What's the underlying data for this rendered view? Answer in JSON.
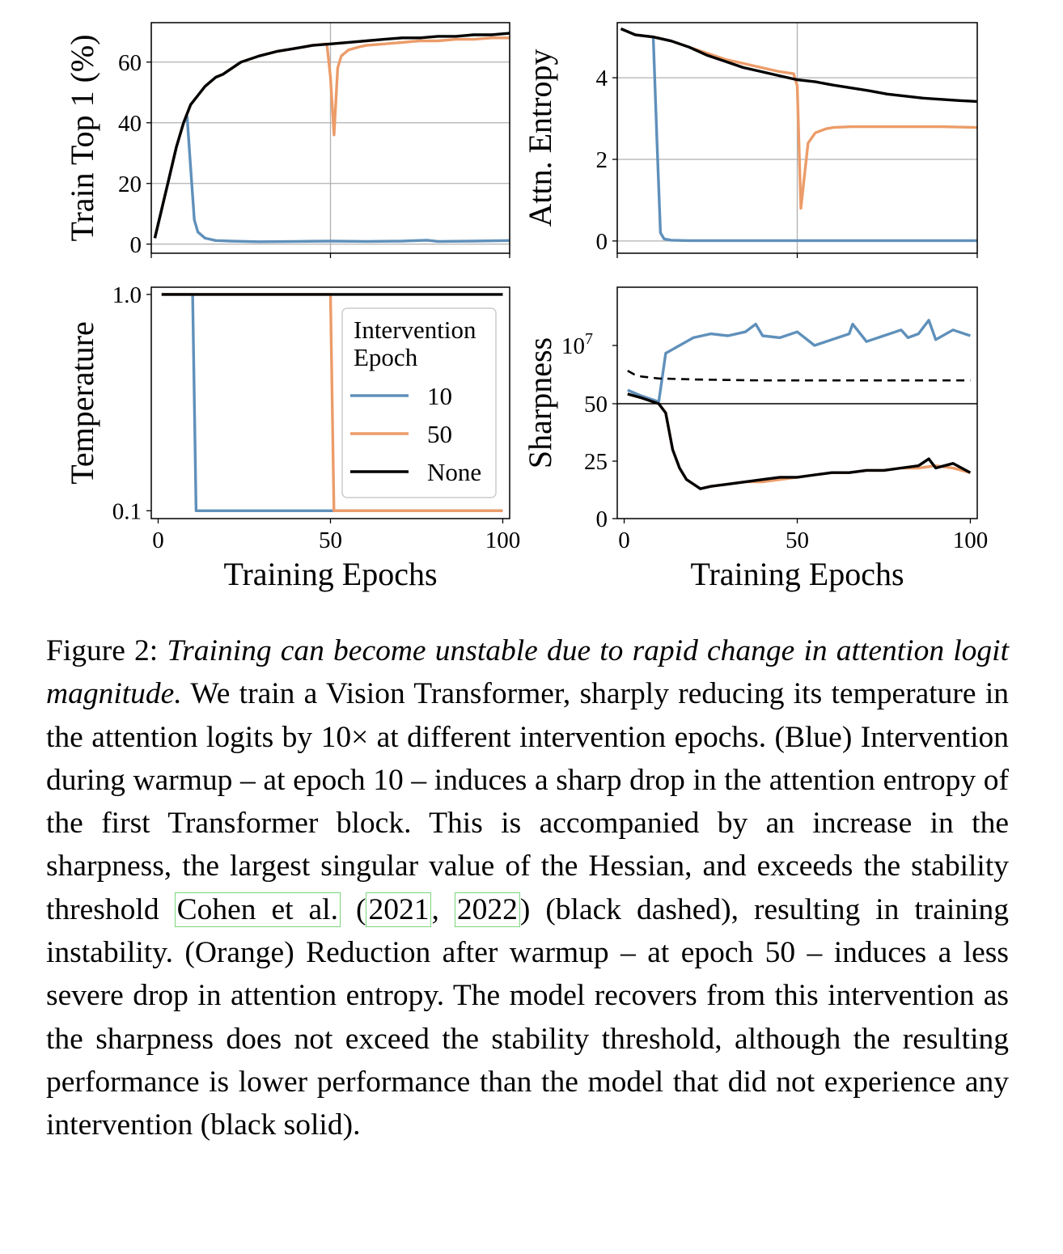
{
  "colors": {
    "blue": "#5f90bb",
    "orange": "#ec9c69",
    "black": "#000000",
    "grid": "#b0b0b0"
  },
  "legend": {
    "title_line1": "Intervention",
    "title_line2": "Epoch",
    "labels": [
      "10",
      "50",
      "None"
    ]
  },
  "caption": {
    "label": "Figure 2:",
    "italic": "Training can become unstable due to rapid change in attention logit magnitude.",
    "text1": "We train a Vision Transformer, sharply reducing its temperature in the attention logits by 10× at different intervention epochs. (Blue) Intervention during warmup – at epoch 10 – induces a sharp drop in the attention entropy of the first Transformer block. This is accompanied by an increase in the sharpness, the largest singular value of the Hessian, and exceeds the stability threshold",
    "cite1": "Cohen et al.",
    "text2": "(",
    "cite2": "2021",
    "text3": ",",
    "cite3": "2022",
    "text4": ") (black dashed), resulting in training instability. (Orange) Reduction after warmup – at epoch 50 – induces a less severe drop in attention entropy. The model recovers from this intervention as the sharpness does not exceed the stability threshold, although the resulting performance is lower performance than the model that did not experience any intervention (black solid)."
  },
  "chart_data": [
    {
      "type": "line",
      "ylabel": "Train Top 1 (%)",
      "xlabel": "",
      "xlim": [
        0,
        100
      ],
      "ylim": [
        -3,
        73
      ],
      "xticks": [
        0,
        50,
        100
      ],
      "yticks": [
        0,
        20,
        40,
        60
      ],
      "grid": true,
      "series": [
        {
          "name": "10",
          "x": [
            1,
            3,
            5,
            7,
            9,
            10,
            11,
            12,
            13,
            15,
            18,
            22,
            30,
            40,
            50,
            60,
            70,
            77,
            80,
            90,
            100
          ],
          "y": [
            2,
            12,
            22,
            32,
            40,
            42,
            25,
            8,
            4,
            2,
            1.2,
            1,
            0.8,
            0.9,
            1,
            0.9,
            1,
            1.3,
            0.9,
            1,
            1.2
          ]
        },
        {
          "name": "50",
          "x": [
            1,
            3,
            5,
            7,
            9,
            11,
            13,
            15,
            18,
            20,
            25,
            30,
            35,
            40,
            45,
            49,
            50,
            51,
            52,
            53,
            55,
            58,
            60,
            65,
            70,
            75,
            80,
            85,
            90,
            95,
            100
          ],
          "y": [
            2,
            12,
            22,
            32,
            40,
            46,
            49,
            52,
            55,
            56,
            60,
            62,
            63.5,
            64.5,
            65.5,
            66,
            55,
            36,
            58,
            62,
            64,
            65,
            65.5,
            66,
            66.5,
            67,
            67,
            67.5,
            67.5,
            68,
            68
          ]
        },
        {
          "name": "None",
          "x": [
            1,
            3,
            5,
            7,
            9,
            11,
            13,
            15,
            18,
            20,
            25,
            30,
            35,
            40,
            45,
            50,
            55,
            60,
            65,
            70,
            75,
            80,
            85,
            90,
            95,
            100
          ],
          "y": [
            2,
            12,
            22,
            32,
            40,
            46,
            49,
            52,
            55,
            56,
            60,
            62,
            63.5,
            64.5,
            65.5,
            66,
            66.5,
            67,
            67.5,
            68,
            68,
            68.5,
            68.5,
            69,
            69,
            69.5
          ]
        }
      ]
    },
    {
      "type": "line",
      "ylabel": "Attn. Entropy",
      "xlabel": "",
      "xlim": [
        0,
        100
      ],
      "ylim": [
        -0.3,
        5.35
      ],
      "xticks": [
        0,
        50,
        100
      ],
      "yticks": [
        0,
        2,
        4
      ],
      "grid": true,
      "series": [
        {
          "name": "10",
          "x": [
            1,
            5,
            10,
            11,
            12,
            13,
            15,
            20,
            30,
            50,
            70,
            100
          ],
          "y": [
            5.2,
            5.05,
            5.0,
            2.5,
            0.2,
            0.05,
            0.02,
            0.01,
            0.01,
            0.01,
            0.01,
            0.01
          ]
        },
        {
          "name": "50",
          "x": [
            1,
            5,
            10,
            15,
            20,
            25,
            30,
            35,
            40,
            45,
            49,
            50,
            51,
            52,
            53,
            55,
            58,
            60,
            65,
            70,
            80,
            90,
            100
          ],
          "y": [
            5.2,
            5.05,
            5.0,
            4.9,
            4.75,
            4.6,
            4.45,
            4.35,
            4.25,
            4.15,
            4.1,
            3.8,
            0.8,
            1.6,
            2.4,
            2.65,
            2.75,
            2.78,
            2.8,
            2.8,
            2.8,
            2.8,
            2.78
          ]
        },
        {
          "name": "None",
          "x": [
            1,
            5,
            10,
            15,
            20,
            25,
            30,
            35,
            40,
            45,
            50,
            55,
            60,
            65,
            70,
            75,
            80,
            85,
            90,
            95,
            100
          ],
          "y": [
            5.2,
            5.05,
            5.0,
            4.9,
            4.75,
            4.55,
            4.4,
            4.25,
            4.15,
            4.05,
            3.95,
            3.9,
            3.82,
            3.75,
            3.68,
            3.6,
            3.55,
            3.5,
            3.47,
            3.44,
            3.42
          ]
        }
      ]
    },
    {
      "type": "line",
      "ylabel": "Temperature",
      "xlabel": "Training Epochs",
      "xlim": [
        -2,
        102
      ],
      "ylim": [
        0.092,
        1.08
      ],
      "yscale": "log",
      "xticks": [
        0,
        50,
        100
      ],
      "yticks": [
        0.1,
        1.0
      ],
      "ytick_labels": [
        "0.1",
        "1.0"
      ],
      "grid": false,
      "legend_position": "right",
      "series": [
        {
          "name": "10",
          "x": [
            1,
            10,
            11,
            100
          ],
          "y": [
            1.0,
            1.0,
            0.1,
            0.1
          ]
        },
        {
          "name": "50",
          "x": [
            1,
            50,
            51,
            100
          ],
          "y": [
            1.0,
            1.0,
            0.1,
            0.1
          ]
        },
        {
          "name": "None",
          "x": [
            1,
            100
          ],
          "y": [
            1.0,
            1.0
          ]
        }
      ]
    },
    {
      "type": "line",
      "ylabel": "Sharpness",
      "xlabel": "Training Epochs",
      "xlim": [
        -2,
        102
      ],
      "xticks": [
        0,
        50,
        100
      ],
      "yticks": [
        "0",
        "25",
        "50",
        "10^7"
      ],
      "grid": false,
      "series": [
        {
          "name": "10",
          "x": [
            1,
            5,
            10,
            12,
            14,
            16,
            18,
            20,
            25,
            30,
            35,
            38,
            40,
            45,
            50,
            55,
            60,
            65,
            66,
            70,
            75,
            80,
            82,
            85,
            88,
            90,
            95,
            100
          ],
          "y": [
            57,
            54,
            51,
            76,
            78,
            80,
            82,
            84,
            86,
            85,
            87,
            91,
            85,
            84,
            87,
            80,
            83,
            86,
            91,
            82,
            85,
            88,
            84,
            86,
            93,
            83,
            88,
            85
          ]
        },
        {
          "name": "50",
          "x": [
            1,
            5,
            10,
            12,
            14,
            16,
            18,
            20,
            22,
            25,
            30,
            35,
            40,
            45,
            50,
            55,
            60,
            65,
            70,
            75,
            80,
            85,
            90,
            95,
            100
          ],
          "y": [
            55,
            53,
            50,
            46,
            30,
            22,
            17,
            15,
            13,
            14,
            15,
            16,
            16,
            17,
            18,
            19,
            20,
            20,
            21,
            21,
            22,
            22,
            23,
            22,
            20
          ]
        },
        {
          "name": "None",
          "x": [
            1,
            5,
            10,
            12,
            14,
            16,
            18,
            20,
            22,
            25,
            30,
            35,
            40,
            45,
            50,
            55,
            60,
            65,
            70,
            75,
            80,
            85,
            88,
            90,
            95,
            100
          ],
          "y": [
            55,
            53,
            50,
            46,
            30,
            22,
            17,
            15,
            13,
            14,
            15,
            16,
            17,
            18,
            18,
            19,
            20,
            20,
            21,
            21,
            22,
            23,
            26,
            22,
            24,
            20
          ]
        },
        {
          "x": [
            1,
            3,
            5,
            10,
            20,
            30,
            40,
            50,
            60,
            70,
            80,
            90,
            100
          ],
          "y": [
            67,
            65,
            64,
            63,
            62.5,
            62.2,
            62,
            62,
            62,
            62,
            62,
            62,
            62
          ]
        },
        {
          "x": [
            -2,
            102
          ],
          "y": [
            50,
            50
          ]
        }
      ]
    }
  ]
}
